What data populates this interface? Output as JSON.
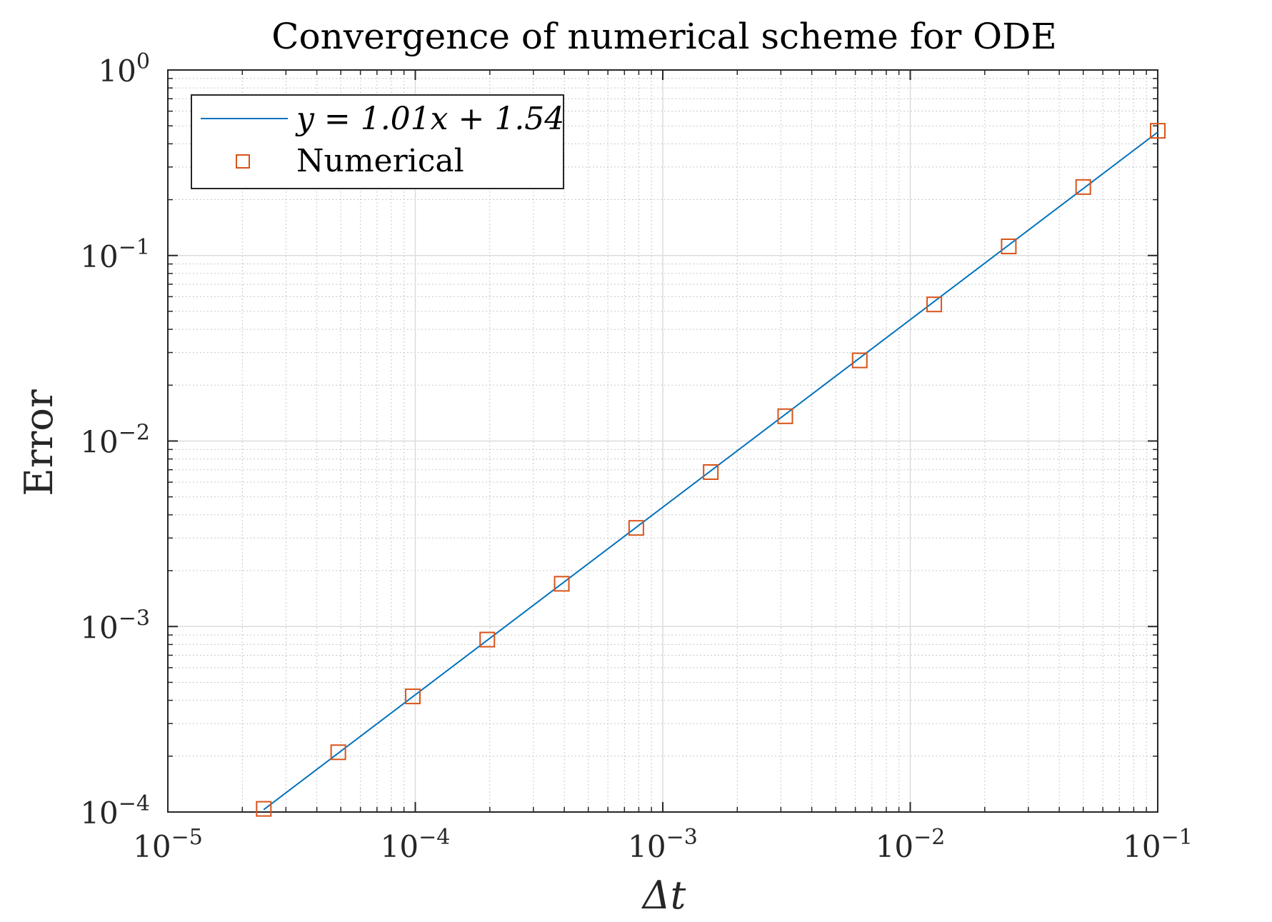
{
  "chart_data": {
    "type": "scatter",
    "title": "Convergence of numerical scheme for ODE",
    "xlabel": "Δt",
    "ylabel": "Error",
    "xscale": "log",
    "yscale": "log",
    "xlim": [
      1e-05,
      0.1
    ],
    "ylim": [
      0.0001,
      1
    ],
    "grid": true,
    "minor_grid": true,
    "legend_position": "top-left",
    "x_ticks": [
      {
        "value": 1e-05,
        "base": "10",
        "exp": "−5"
      },
      {
        "value": 0.0001,
        "base": "10",
        "exp": "−4"
      },
      {
        "value": 0.001,
        "base": "10",
        "exp": "−3"
      },
      {
        "value": 0.01,
        "base": "10",
        "exp": "−2"
      },
      {
        "value": 0.1,
        "base": "10",
        "exp": "−1"
      }
    ],
    "y_ticks": [
      {
        "value": 0.0001,
        "base": "10",
        "exp": "−4"
      },
      {
        "value": 0.001,
        "base": "10",
        "exp": "−3"
      },
      {
        "value": 0.01,
        "base": "10",
        "exp": "−2"
      },
      {
        "value": 0.1,
        "base": "10",
        "exp": "−1"
      },
      {
        "value": 1,
        "base": "10",
        "exp": "0"
      }
    ],
    "series": [
      {
        "name": "y = 1.01x + 1.54",
        "kind": "line",
        "color": "#0072BD",
        "x": [
          2.44e-05,
          0.1
        ],
        "y": [
          0.000103,
          0.4626
        ]
      },
      {
        "name": "Numerical",
        "kind": "marker",
        "marker": "square",
        "color": "#D95319",
        "x": [
          0.1,
          0.05,
          0.025,
          0.0125,
          0.00625,
          0.003125,
          0.0015625,
          0.00078125,
          0.000390625,
          0.000195313,
          9.76563e-05,
          4.88281e-05,
          2.44141e-05
        ],
        "y": [
          0.47,
          0.234,
          0.112,
          0.0545,
          0.0272,
          0.0136,
          0.0068,
          0.0034,
          0.0017,
          0.00085,
          0.00042,
          0.00021,
          0.000104
        ]
      }
    ],
    "legend": [
      {
        "label": "y = 1.01x + 1.54",
        "symbol": "line",
        "color": "#0072BD"
      },
      {
        "label": "Numerical",
        "symbol": "square",
        "color": "#D95319"
      }
    ]
  }
}
